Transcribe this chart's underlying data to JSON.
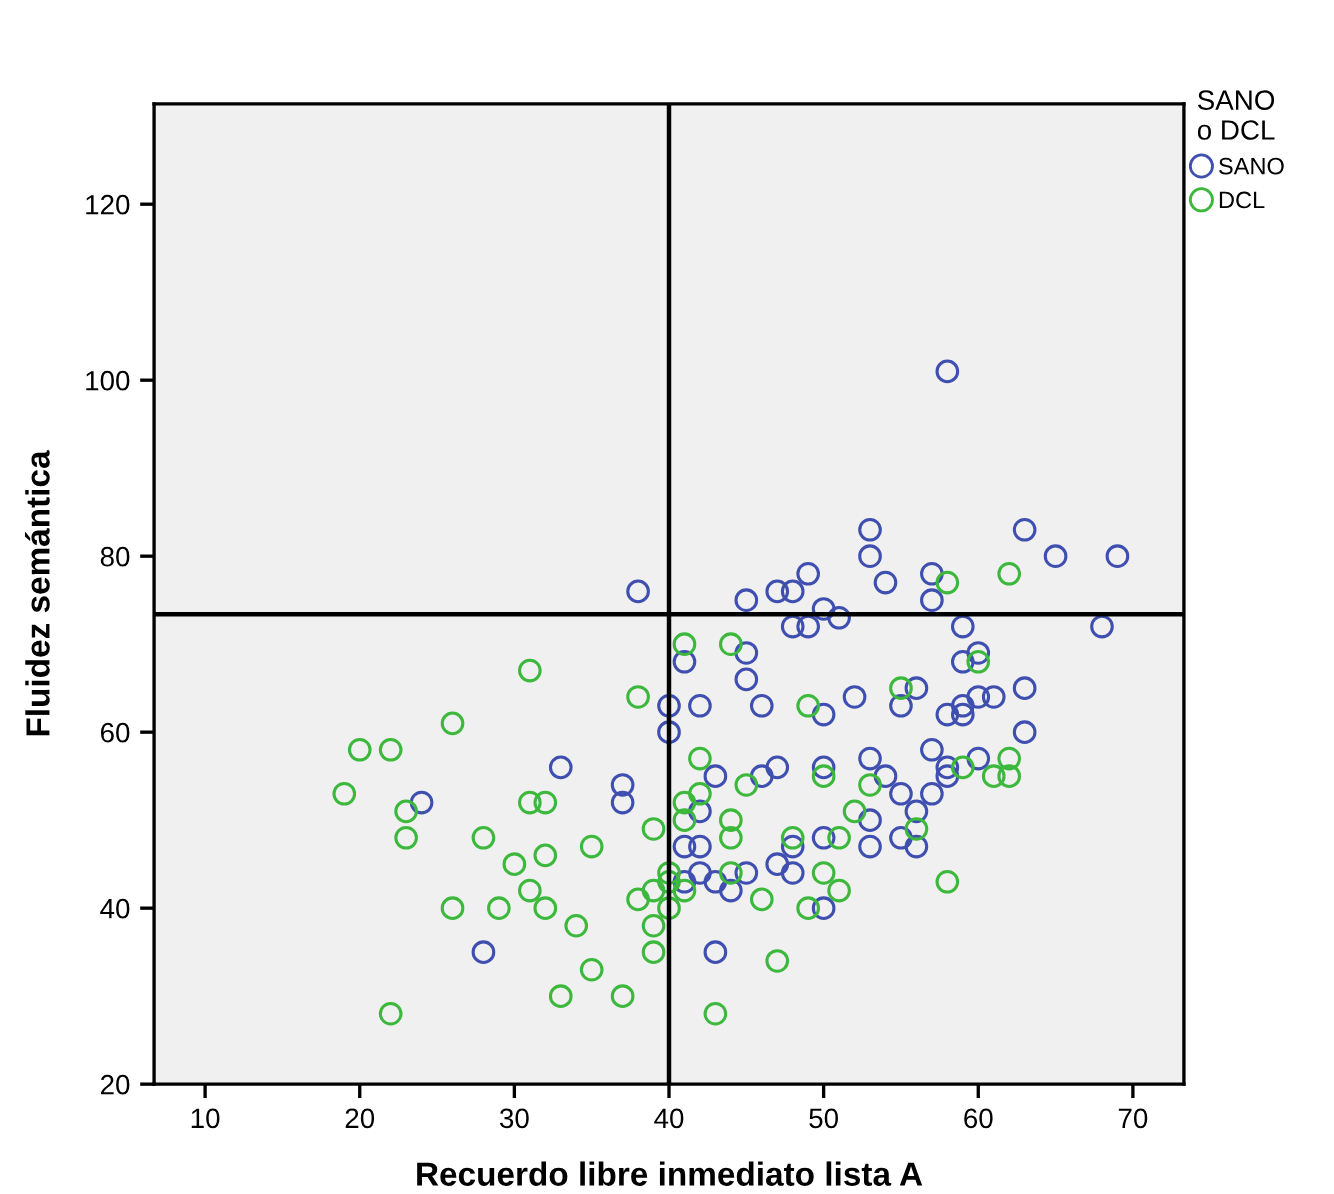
{
  "chart_data": {
    "type": "scatter",
    "xlabel": "Recuerdo libre inmediato lista A",
    "ylabel": "Fluidez semántica",
    "legend_title": "SANO\no DCL",
    "legend": "top right",
    "marker": "circle",
    "grid": false,
    "xlim": [
      6.7,
      73.3
    ],
    "xticks": [
      10,
      20,
      30,
      40,
      50,
      60,
      70
    ],
    "ylim": [
      20,
      131.4
    ],
    "yticks": [
      20,
      40,
      60,
      80,
      100,
      120
    ],
    "ref_lines": [
      {
        "axis": "x",
        "value": 40,
        "color": "#000000"
      },
      {
        "axis": "y",
        "value": 73.4,
        "color": "#000000"
      }
    ],
    "series": [
      {
        "name": "SANO",
        "color": "#3f4fb0",
        "x": [
          58,
          53,
          63,
          53,
          65,
          69,
          49,
          57,
          54,
          45,
          47,
          48,
          57,
          50,
          51,
          48,
          49,
          59,
          68,
          38,
          45,
          41,
          59,
          60,
          45,
          56,
          52,
          63,
          40,
          42,
          46,
          50,
          55,
          58,
          59,
          59,
          60,
          61,
          40,
          63,
          43,
          46,
          47,
          50,
          53,
          54,
          57,
          58,
          58,
          60,
          55,
          57,
          42,
          53,
          56,
          55,
          56,
          53,
          50,
          48,
          41,
          42,
          47,
          48,
          42,
          45,
          41,
          43,
          44,
          50,
          43,
          33,
          37,
          37,
          24,
          28
        ],
        "values": [
          101,
          83,
          83,
          80,
          80,
          80,
          78,
          78,
          77,
          75,
          76,
          76,
          75,
          74,
          73,
          72,
          72,
          72,
          72,
          76,
          69,
          68,
          68,
          69,
          66,
          65,
          64,
          65,
          63,
          63,
          63,
          62,
          63,
          62,
          63,
          62,
          64,
          64,
          60,
          60,
          55,
          55,
          56,
          56,
          57,
          55,
          58,
          56,
          55,
          57,
          53,
          53,
          51,
          50,
          51,
          48,
          47,
          47,
          48,
          47,
          47,
          47,
          45,
          44,
          44,
          44,
          43,
          43,
          42,
          40,
          35,
          56,
          54,
          52,
          52,
          35
        ]
      },
      {
        "name": "DCL",
        "color": "#3cb83c",
        "x": [
          62,
          58,
          44,
          41,
          60,
          55,
          49,
          42,
          50,
          53,
          59,
          61,
          62,
          62,
          41,
          42,
          41,
          44,
          44,
          52,
          56,
          51,
          48,
          39,
          44,
          50,
          40,
          40,
          39,
          41,
          40,
          39,
          39,
          46,
          51,
          49,
          58,
          47,
          43,
          31,
          38,
          26,
          20,
          22,
          19,
          23,
          31,
          32,
          23,
          28,
          35,
          32,
          30,
          31,
          26,
          29,
          32,
          34,
          38,
          35,
          33,
          37,
          22,
          45
        ],
        "values": [
          78,
          77,
          70,
          70,
          68,
          65,
          63,
          57,
          55,
          54,
          56,
          55,
          57,
          55,
          52,
          53,
          50,
          50,
          48,
          51,
          49,
          48,
          48,
          49,
          44,
          44,
          44,
          43,
          42,
          42,
          40,
          38,
          35,
          41,
          42,
          40,
          43,
          34,
          28,
          67,
          64,
          61,
          58,
          58,
          53,
          51,
          52,
          52,
          48,
          48,
          47,
          46,
          45,
          42,
          40,
          40,
          40,
          38,
          41,
          33,
          30,
          30,
          28,
          54
        ]
      }
    ]
  }
}
